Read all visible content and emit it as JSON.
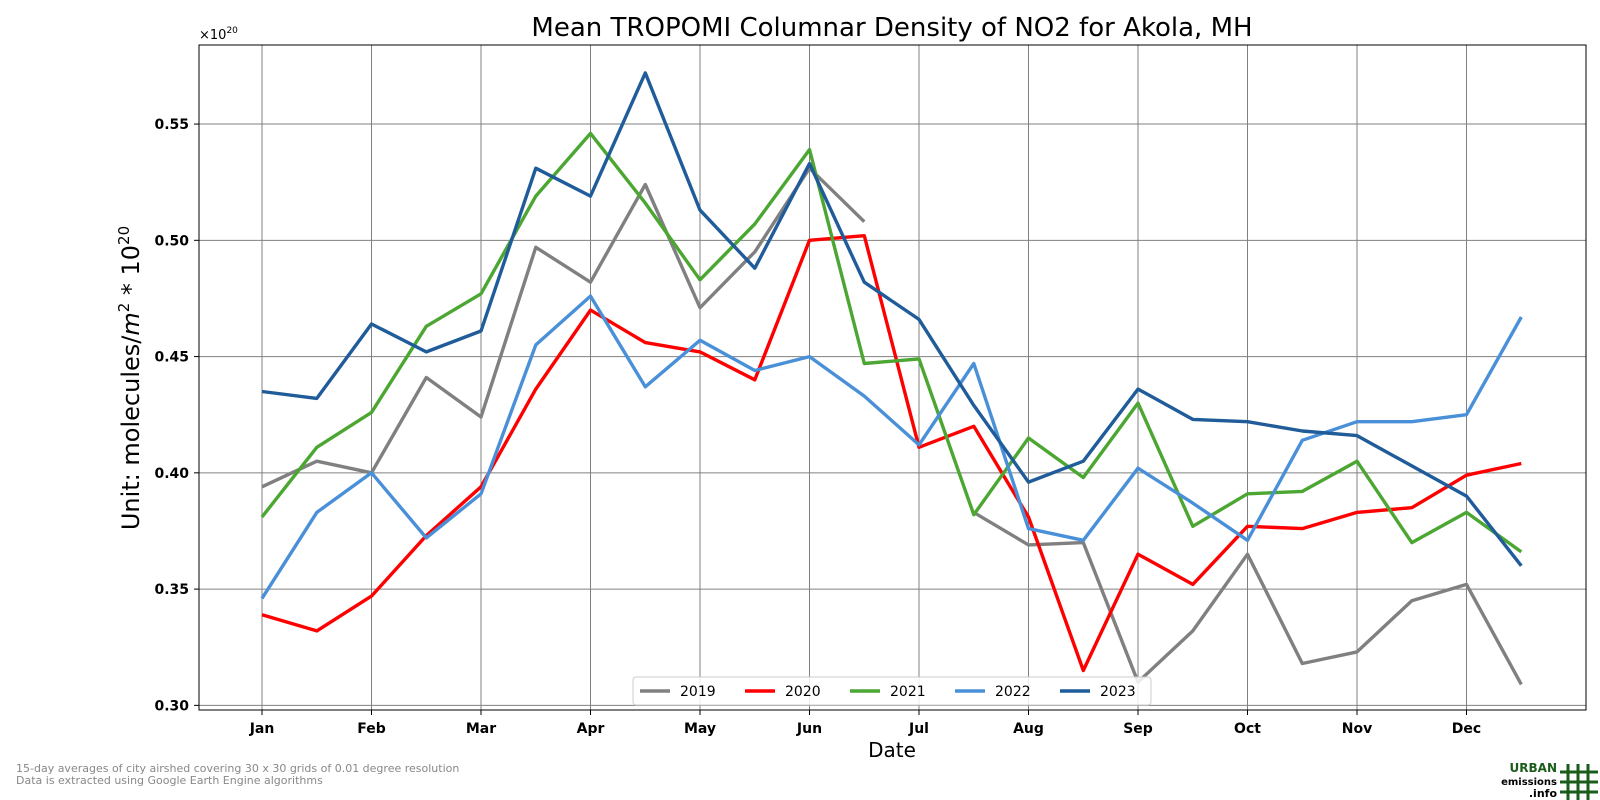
{
  "chart_data": {
    "type": "line",
    "title": "Mean TROPOMI Columnar Density of NO2 for Akola, MH",
    "xlabel": "Date",
    "ylabel": "Unit: molecules/",
    "ylabel_parts": {
      "m": "m",
      "sq": "2",
      "times10": " * 10",
      "exp": "20"
    },
    "offset_label": {
      "base": "×10",
      "exp": "20"
    },
    "ylim": [
      0.298,
      0.584
    ],
    "yticks": [
      "0.30",
      "0.35",
      "0.40",
      "0.45",
      "0.50",
      "0.55"
    ],
    "ytick_values": [
      0.3,
      0.35,
      0.4,
      0.45,
      0.5,
      0.55
    ],
    "xticks": [
      "Jan",
      "Feb",
      "Mar",
      "Apr",
      "May",
      "Jun",
      "Jul",
      "Aug",
      "Sep",
      "Oct",
      "Nov",
      "Dec"
    ],
    "grid": true,
    "legend_position": "bottom-center",
    "x": [
      0,
      0.5,
      1,
      1.5,
      2,
      2.5,
      3,
      3.5,
      4,
      4.5,
      5,
      5.5,
      6,
      6.5,
      7,
      7.5,
      8,
      8.5,
      9,
      9.5,
      10,
      10.5,
      11,
      11.5
    ],
    "series": [
      {
        "name": "2019",
        "color": "#808080",
        "values": [
          0.394,
          0.405,
          0.4,
          0.441,
          0.424,
          0.497,
          0.482,
          0.524,
          0.471,
          0.495,
          0.531,
          0.508,
          null,
          null,
          null,
          null,
          null,
          null,
          null,
          null,
          null,
          null,
          null,
          null
        ],
        "tail": [
          null,
          null,
          null,
          null,
          null,
          null,
          null,
          null,
          null,
          null,
          null,
          null,
          null,
          0.383,
          0.369,
          0.37,
          0.31,
          0.332,
          0.365,
          0.318,
          0.323,
          0.345,
          0.352,
          0.309
        ]
      },
      {
        "name": "2020",
        "color": "#ff0000",
        "values": [
          0.339,
          0.332,
          0.347,
          0.373,
          0.394,
          0.436,
          0.47,
          0.456,
          0.452,
          0.44,
          0.5,
          0.502,
          0.411,
          0.42,
          0.381,
          0.315,
          0.365,
          0.352,
          0.377,
          0.376,
          0.383,
          0.385,
          0.399,
          0.404
        ]
      },
      {
        "name": "2021",
        "color": "#4ca632",
        "values": [
          0.381,
          0.411,
          0.426,
          0.463,
          0.477,
          0.519,
          0.546,
          0.516,
          0.483,
          0.507,
          0.539,
          0.447,
          0.449,
          0.382,
          0.415,
          0.398,
          0.43,
          0.377,
          0.391,
          0.392,
          0.405,
          0.37,
          0.383,
          0.366
        ]
      },
      {
        "name": "2022",
        "color": "#4a90d9",
        "values": [
          0.346,
          0.383,
          0.4,
          0.372,
          0.391,
          0.455,
          0.476,
          0.437,
          0.457,
          0.444,
          0.45,
          0.433,
          0.412,
          0.447,
          0.376,
          0.371,
          0.402,
          0.387,
          0.371,
          0.414,
          0.422,
          0.422,
          0.425,
          0.467
        ]
      },
      {
        "name": "2023",
        "color": "#1f5c99",
        "values": [
          0.435,
          0.432,
          0.464,
          0.452,
          0.461,
          0.531,
          0.519,
          0.572,
          0.513,
          0.488,
          0.533,
          0.482,
          0.466,
          0.429,
          0.396,
          0.405,
          0.436,
          0.423,
          0.422,
          0.418,
          0.416,
          0.403,
          0.39,
          0.36
        ]
      }
    ]
  },
  "footnote": {
    "line1": "15-day averages of city airshed covering 30 x 30 grids of 0.01 degree resolution",
    "line2": "Data is extracted using Google Earth Engine algorithms"
  },
  "logo": {
    "line1": "URBAN",
    "line2": "emissions",
    "line3": ".info",
    "color": "#1a5c1a"
  }
}
